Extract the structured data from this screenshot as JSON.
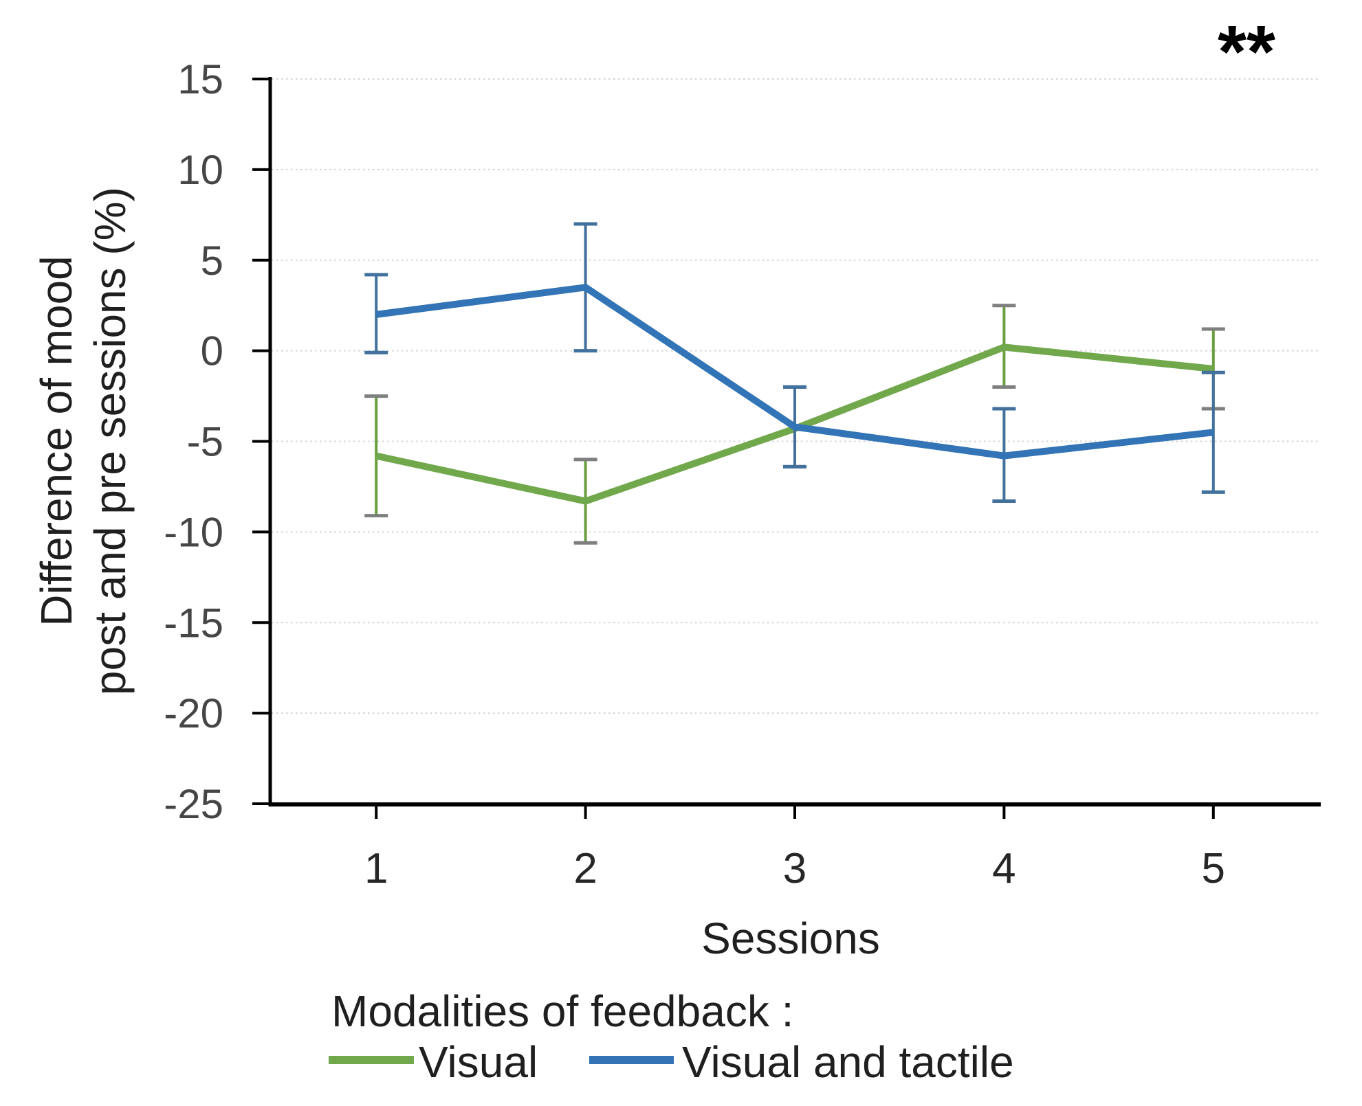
{
  "chart_data": {
    "type": "line",
    "title": "",
    "xlabel": "Sessions",
    "ylabel_lines": [
      "Difference of mood",
      "post and pre sessions (%)"
    ],
    "categories": [
      "1",
      "2",
      "3",
      "4",
      "5"
    ],
    "yticks": [
      15,
      10,
      5,
      0,
      -5,
      -10,
      -15,
      -20,
      -25
    ],
    "ylim": [
      -25,
      15
    ],
    "grid": "horizontal-dotted",
    "gridline_color": "#D3D3D3",
    "axis_color": "#000000",
    "y_tick_label_color": "#454545",
    "x_tick_label_color": "#262626",
    "text_color": "#1F1F1F",
    "annotation": {
      "text": "**",
      "position": "top-right",
      "color": "#000000"
    },
    "legend": {
      "title": "Modalities of feedback :",
      "position": "bottom-left"
    },
    "series": [
      {
        "name": "Visual",
        "color": "#71A84C",
        "error_color": "#6B9E3E",
        "cap_color": "#7F7F7F",
        "values": [
          -5.8,
          -8.3,
          -4.3,
          0.2,
          -1.0
        ],
        "error_low": [
          -9.1,
          -10.6,
          -6.4,
          -2.0,
          -3.2
        ],
        "error_high": [
          -2.5,
          -6.0,
          -2.0,
          2.5,
          1.2
        ]
      },
      {
        "name": "Visual and tactile",
        "color": "#3274B5",
        "error_color": "#41719C",
        "cap_color": "#41719C",
        "values": [
          2.0,
          3.5,
          -4.2,
          -5.8,
          -4.5
        ],
        "error_low": [
          -0.1,
          0.0,
          -6.4,
          -8.3,
          -7.8
        ],
        "error_high": [
          4.2,
          7.0,
          -2.0,
          -3.2,
          -1.2
        ]
      }
    ]
  }
}
